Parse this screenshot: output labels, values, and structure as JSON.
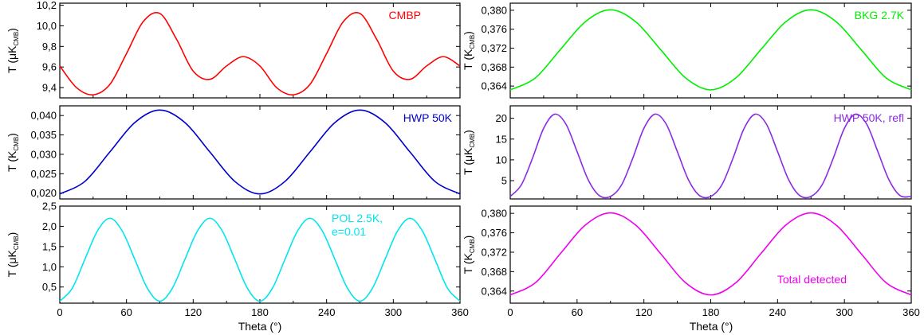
{
  "figure": {
    "xlabel": "Theta (°)",
    "xticks": [
      "0",
      "60",
      "120",
      "180",
      "240",
      "300",
      "360"
    ]
  },
  "chart_data": [
    {
      "type": "line",
      "legend": "CMBP",
      "color": "#ff0000",
      "ylabel": {
        "main": "T (μK",
        "sub": "CMB",
        "close": ")"
      },
      "xlim": [
        0,
        360
      ],
      "ylim": [
        9.3,
        10.22
      ],
      "yticks": [
        "9,4",
        "9,6",
        "9,8",
        "10,0",
        "10,2"
      ],
      "x": [
        0,
        15,
        30,
        45,
        60,
        75,
        90,
        105,
        120,
        135,
        150,
        165,
        180,
        195,
        210,
        225,
        240,
        255,
        270,
        285,
        300,
        315,
        330,
        345,
        360
      ],
      "y": [
        9.61,
        9.4,
        9.33,
        9.43,
        9.73,
        10.04,
        10.12,
        9.87,
        9.56,
        9.48,
        9.61,
        9.7,
        9.61,
        9.4,
        9.33,
        9.43,
        9.73,
        10.04,
        10.12,
        9.87,
        9.56,
        9.48,
        9.61,
        9.7,
        9.61
      ]
    },
    {
      "type": "line",
      "legend": "BKG 2.7K",
      "color": "#00ee00",
      "ylabel": {
        "main": "T (K",
        "sub": "CMB",
        "close": ")"
      },
      "xlim": [
        0,
        360
      ],
      "ylim": [
        0.3615,
        0.3815
      ],
      "yticks": [
        "0,364",
        "0,368",
        "0,372",
        "0,376",
        "0,380"
      ],
      "x": [
        0,
        22.5,
        45,
        67.5,
        90,
        112.5,
        135,
        157.5,
        180,
        202.5,
        225,
        247.5,
        270,
        292.5,
        315,
        337.5,
        360
      ],
      "y": [
        0.3632,
        0.3657,
        0.3717,
        0.3776,
        0.3801,
        0.3776,
        0.3717,
        0.3657,
        0.3632,
        0.3657,
        0.3717,
        0.3776,
        0.3801,
        0.3776,
        0.3717,
        0.3657,
        0.3632
      ]
    },
    {
      "type": "line",
      "legend": "HWP 50K",
      "color": "#0000cc",
      "ylabel": {
        "main": "T (K",
        "sub": "CMB",
        "close": ")"
      },
      "xlim": [
        0,
        360
      ],
      "ylim": [
        0.0185,
        0.0425
      ],
      "yticks": [
        "0,020",
        "0,025",
        "0,030",
        "0,035",
        "0,040"
      ],
      "x": [
        0,
        22.5,
        45,
        67.5,
        90,
        112.5,
        135,
        157.5,
        180,
        202.5,
        225,
        247.5,
        270,
        292.5,
        315,
        337.5,
        360
      ],
      "y": [
        0.0198,
        0.023,
        0.0306,
        0.0382,
        0.0414,
        0.0382,
        0.0306,
        0.023,
        0.0198,
        0.023,
        0.0306,
        0.0382,
        0.0414,
        0.0382,
        0.0306,
        0.023,
        0.0198
      ]
    },
    {
      "type": "line",
      "legend": "HWP 50K, refl",
      "color": "#8a2be2",
      "ylabel": {
        "main": "T (μK",
        "sub": "CMB",
        "close": ")"
      },
      "xlim": [
        0,
        360
      ],
      "ylim": [
        0.6,
        23.0
      ],
      "yticks": [
        "5",
        "10",
        "15",
        "20"
      ],
      "x": [
        0,
        10,
        20,
        30,
        40,
        50,
        60,
        70,
        80,
        90,
        100,
        110,
        120,
        130,
        140,
        150,
        160,
        170,
        180,
        190,
        200,
        210,
        220,
        230,
        240,
        250,
        260,
        270,
        280,
        290,
        300,
        310,
        320,
        330,
        340,
        350,
        360
      ],
      "y": [
        1.2,
        4.0,
        10.4,
        17.6,
        21.0,
        18.6,
        12.0,
        5.2,
        1.4,
        1.2,
        4.0,
        10.4,
        17.6,
        21.0,
        18.6,
        12.0,
        5.2,
        1.4,
        1.2,
        4.0,
        10.4,
        17.6,
        21.0,
        18.6,
        12.0,
        5.2,
        1.4,
        1.2,
        4.0,
        10.4,
        17.6,
        21.0,
        18.6,
        12.0,
        5.2,
        1.4,
        1.2
      ]
    },
    {
      "type": "line",
      "legend": "POL 2.5K,\ne=0.01",
      "color": "#00e5ee",
      "ylabel": {
        "main": "T (μK",
        "sub": "CMB",
        "close": ")"
      },
      "xlim": [
        0,
        360
      ],
      "ylim": [
        0.1,
        2.5
      ],
      "yticks": [
        "0,5",
        "1,0",
        "1,5",
        "2,0",
        "2,5"
      ],
      "x": [
        0,
        11.25,
        22.5,
        33.75,
        45,
        56.25,
        67.5,
        78.75,
        90,
        101.25,
        112.5,
        123.75,
        135,
        146.25,
        157.5,
        168.75,
        180,
        191.25,
        202.5,
        213.75,
        225,
        236.25,
        247.5,
        258.75,
        270,
        281.25,
        292.5,
        303.75,
        315,
        326.25,
        337.5,
        348.75,
        360
      ],
      "y": [
        0.15,
        0.47,
        1.18,
        1.88,
        2.2,
        1.88,
        1.18,
        0.47,
        0.15,
        0.47,
        1.18,
        1.88,
        2.2,
        1.88,
        1.18,
        0.47,
        0.15,
        0.47,
        1.18,
        1.88,
        2.2,
        1.88,
        1.18,
        0.47,
        0.15,
        0.47,
        1.18,
        1.88,
        2.2,
        1.88,
        1.18,
        0.47,
        0.15
      ]
    },
    {
      "type": "line",
      "legend": "Total detected",
      "color": "#ee00ee",
      "ylabel": {
        "main": "T (K",
        "sub": "CMB",
        "close": ")"
      },
      "xlim": [
        0,
        360
      ],
      "ylim": [
        0.3615,
        0.3815
      ],
      "yticks": [
        "0,364",
        "0,368",
        "0,372",
        "0,376",
        "0,380"
      ],
      "x": [
        0,
        22.5,
        45,
        67.5,
        90,
        112.5,
        135,
        157.5,
        180,
        202.5,
        225,
        247.5,
        270,
        292.5,
        315,
        337.5,
        360
      ],
      "y": [
        0.3632,
        0.3657,
        0.3717,
        0.3776,
        0.3801,
        0.3776,
        0.3717,
        0.3657,
        0.3632,
        0.3657,
        0.3717,
        0.3776,
        0.3801,
        0.3776,
        0.3717,
        0.3657,
        0.3632
      ]
    }
  ]
}
